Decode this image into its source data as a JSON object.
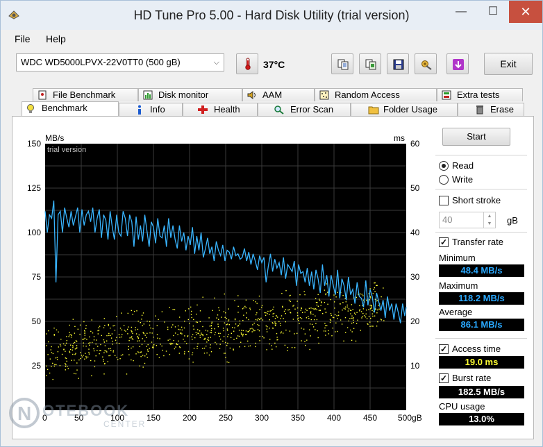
{
  "window": {
    "title": "HD Tune Pro 5.00 - Hard Disk Utility (trial version)",
    "min_glyph": "—",
    "max_glyph": "☐",
    "close_glyph": "✕"
  },
  "menu": {
    "file": "File",
    "help": "Help"
  },
  "toolbar": {
    "drive": "WDC WD5000LPVX-22V0TT0 (500 gB)",
    "temperature": "37°C",
    "exit_label": "Exit",
    "icons": [
      "thermometer-icon",
      "copy-text-icon",
      "copy-screen-icon",
      "save-icon",
      "options-icon",
      "download-icon"
    ]
  },
  "tabs_row1": [
    "File Benchmark",
    "Disk monitor",
    "AAM",
    "Random Access",
    "Extra tests"
  ],
  "tabs_row2": [
    "Benchmark",
    "Info",
    "Health",
    "Error Scan",
    "Folder Usage",
    "Erase"
  ],
  "active_tab": "Benchmark",
  "side": {
    "start_label": "Start",
    "read_label": "Read",
    "write_label": "Write",
    "mode_selected": "Read",
    "short_stroke_label": "Short stroke",
    "short_stroke_checked": false,
    "short_stroke_value": "40",
    "short_stroke_unit": "gB",
    "transfer_rate_label": "Transfer rate",
    "transfer_rate_checked": true,
    "minimum_label": "Minimum",
    "minimum_value": "48.4 MB/s",
    "maximum_label": "Maximum",
    "maximum_value": "118.2 MB/s",
    "average_label": "Average",
    "average_value": "86.1 MB/s",
    "access_time_label": "Access time",
    "access_time_checked": true,
    "access_time_value": "19.0 ms",
    "burst_rate_label": "Burst rate",
    "burst_rate_checked": true,
    "burst_rate_value": "182.5 MB/s",
    "cpu_usage_label": "CPU usage",
    "cpu_usage_value": "13.0%"
  },
  "chart_data": {
    "type": "line",
    "overlay_text": "trial version",
    "left_unit": "MB/s",
    "right_unit": "ms",
    "x_ticks": [
      "0",
      "50",
      "100",
      "150",
      "200",
      "250",
      "300",
      "350",
      "400",
      "450",
      "500gB"
    ],
    "left_ticks": [
      "150",
      "125",
      "100",
      "75",
      "50",
      "25"
    ],
    "right_ticks": [
      "60",
      "50",
      "40",
      "30",
      "20",
      "10"
    ],
    "xlim": [
      0,
      500
    ],
    "ylim_left": [
      0,
      150
    ],
    "ylim_right": [
      0,
      60
    ],
    "grid": true,
    "colors": {
      "background": "#000000",
      "grid": "#3a3a3a",
      "transfer": "#39b5ff",
      "access": "#ffff33"
    },
    "series": [
      {
        "kind": "transfer_rate_line",
        "x": [
          0,
          3,
          6,
          9,
          12,
          15,
          18,
          21,
          24,
          27,
          30,
          33,
          36,
          39,
          42,
          45,
          48,
          51,
          54,
          57,
          60,
          63,
          66,
          69,
          72,
          75,
          78,
          81,
          84,
          87,
          90,
          93,
          96,
          99,
          102,
          105,
          108,
          111,
          114,
          117,
          120,
          123,
          126,
          129,
          132,
          135,
          138,
          141,
          144,
          147,
          150,
          153,
          156,
          159,
          162,
          165,
          168,
          171,
          174,
          177,
          180,
          183,
          186,
          189,
          192,
          195,
          198,
          201,
          204,
          207,
          210,
          213,
          216,
          219,
          222,
          225,
          228,
          231,
          234,
          237,
          240,
          243,
          246,
          249,
          252,
          255,
          258,
          261,
          264,
          267,
          270,
          273,
          276,
          279,
          282,
          285,
          288,
          291,
          294,
          297,
          300,
          303,
          306,
          309,
          312,
          315,
          318,
          321,
          324,
          327,
          330,
          333,
          336,
          339,
          342,
          345,
          348,
          351,
          354,
          357,
          360,
          363,
          366,
          369,
          372,
          375,
          378,
          381,
          384,
          387,
          390,
          393,
          396,
          399,
          402,
          405,
          408,
          411,
          414,
          417,
          420,
          423,
          426,
          429,
          432,
          435,
          438,
          441,
          444,
          447,
          450,
          453,
          456,
          459,
          462,
          465,
          468,
          471,
          474,
          477,
          480,
          483,
          486,
          489,
          492,
          495,
          498,
          500
        ],
        "values": [
          112,
          100,
          110,
          108,
          118,
          72,
          110,
          112,
          100,
          114,
          108,
          103,
          112,
          104,
          109,
          114,
          100,
          113,
          104,
          110,
          112,
          106,
          114,
          100,
          108,
          113,
          97,
          110,
          107,
          96,
          112,
          103,
          96,
          110,
          100,
          98,
          112,
          108,
          98,
          110,
          106,
          92,
          109,
          96,
          104,
          95,
          110,
          101,
          92,
          106,
          103,
          94,
          108,
          98,
          97,
          104,
          92,
          108,
          97,
          104,
          96,
          91,
          104,
          95,
          100,
          90,
          98,
          93,
          103,
          88,
          98,
          90,
          100,
          86,
          91,
          97,
          88,
          92,
          84,
          95,
          90,
          87,
          93,
          84,
          90,
          89,
          85,
          92,
          87,
          88,
          85,
          86,
          91,
          84,
          89,
          82,
          88,
          84,
          79,
          87,
          83,
          86,
          72,
          81,
          88,
          78,
          85,
          80,
          83,
          76,
          86,
          74,
          82,
          80,
          78,
          84,
          70,
          82,
          77,
          78,
          72,
          80,
          70,
          78,
          68,
          79,
          74,
          66,
          82,
          70,
          76,
          64,
          76,
          70,
          65,
          79,
          63,
          74,
          70,
          62,
          75,
          65,
          68,
          60,
          72,
          64,
          63,
          58,
          73,
          59,
          68,
          64,
          55,
          66,
          61,
          56,
          62,
          52,
          64,
          56,
          60,
          51,
          60,
          55,
          49,
          60,
          53,
          58
        ]
      }
    ],
    "access_points_note": ""
  }
}
